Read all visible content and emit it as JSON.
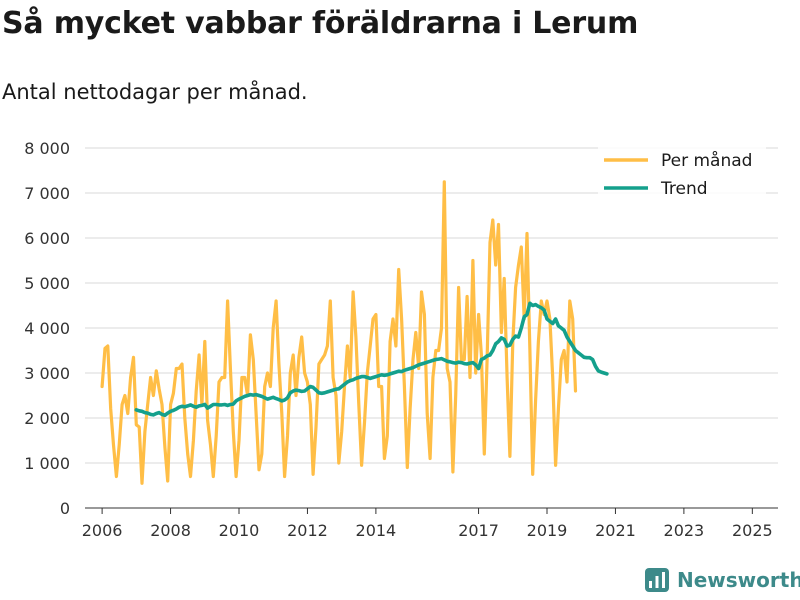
{
  "title": "Så mycket vabbar föräldrarna i Lerum",
  "subtitle": "Antal nettodagar per månad.",
  "brand": {
    "name": "Newsworthy",
    "icon": "newsworthy-logo-icon",
    "color": "#3d8a8a"
  },
  "colors": {
    "monthly": "#ffbe46",
    "trend": "#14a08c",
    "grid": "#d9d9d9",
    "axis": "#333333"
  },
  "chart_data": {
    "type": "line",
    "title": "Så mycket vabbar föräldrarna i Lerum",
    "subtitle": "Antal nettodagar per månad.",
    "xlabel": "",
    "ylabel": "",
    "ylim": [
      0,
      8000
    ],
    "xlim": [
      2005.5,
      2025.75
    ],
    "grid": true,
    "legend_position": "top-right",
    "y_ticks": [
      {
        "value": 0,
        "label": "0"
      },
      {
        "value": 1000,
        "label": "1 000"
      },
      {
        "value": 2000,
        "label": "2 000"
      },
      {
        "value": 3000,
        "label": "3 000"
      },
      {
        "value": 4000,
        "label": "4 000"
      },
      {
        "value": 5000,
        "label": "5 000"
      },
      {
        "value": 6000,
        "label": "6 000"
      },
      {
        "value": 7000,
        "label": "7 000"
      },
      {
        "value": 8000,
        "label": "8 000"
      }
    ],
    "x_ticks": [
      {
        "value": 2006,
        "label": "2006"
      },
      {
        "value": 2008,
        "label": "2008"
      },
      {
        "value": 2010,
        "label": "2010"
      },
      {
        "value": 2012,
        "label": "2012"
      },
      {
        "value": 2014,
        "label": "2014"
      },
      {
        "value": 2017,
        "label": "2017"
      },
      {
        "value": 2019,
        "label": "2019"
      },
      {
        "value": 2021,
        "label": "2021"
      },
      {
        "value": 2023,
        "label": "2023"
      },
      {
        "value": 2025,
        "label": "2025"
      }
    ],
    "start_year": 2006,
    "series": [
      {
        "name": "Per månad",
        "color": "#ffbe46",
        "values": [
          2700,
          3550,
          3600,
          2200,
          1400,
          700,
          1400,
          2300,
          2500,
          2100,
          2900,
          3350,
          1850,
          1800,
          550,
          1700,
          2300,
          2900,
          2500,
          3050,
          2650,
          2300,
          1350,
          600,
          2300,
          2550,
          3100,
          3100,
          3200,
          2000,
          1200,
          700,
          1500,
          2600,
          3400,
          2300,
          3700,
          1950,
          1400,
          700,
          1600,
          2800,
          2900,
          2900,
          4600,
          3100,
          1700,
          700,
          1500,
          2900,
          2900,
          2500,
          3850,
          3300,
          2100,
          850,
          1200,
          2700,
          3000,
          2700,
          4000,
          4600,
          3200,
          2100,
          700,
          1600,
          3000,
          3400,
          2500,
          3350,
          3800,
          3000,
          2800,
          2300,
          750,
          1800,
          3200,
          3300,
          3400,
          3600,
          4600,
          2900,
          2500,
          1000,
          1700,
          2700,
          3600,
          2900,
          4800,
          3800,
          2300,
          950,
          1900,
          3000,
          3600,
          4200,
          4300,
          2700,
          2700,
          1100,
          1600,
          3700,
          4200,
          3600,
          5300,
          4200,
          2700,
          900,
          2200,
          3300,
          3900,
          3100,
          4800,
          4300,
          2100,
          1100,
          2900,
          3500,
          3500,
          4000,
          7250,
          3100,
          2800,
          800,
          2500,
          4900,
          3300,
          3300,
          4700,
          2900,
          5500,
          3000,
          4300,
          3400,
          1200,
          3300,
          5900,
          6400,
          5400,
          6300,
          3900,
          5100,
          2900,
          1150,
          3700,
          4900,
          5400,
          5800,
          4200,
          6100,
          3500,
          750,
          2400,
          3700,
          4600,
          4300,
          4600,
          4200,
          2900,
          950,
          2200,
          3300,
          3500,
          2800,
          4600,
          4200,
          2600
        ]
      },
      {
        "name": "Trend",
        "color": "#14a08c",
        "start_index": 12,
        "values": [
          2180,
          2160,
          2150,
          2120,
          2110,
          2080,
          2070,
          2100,
          2120,
          2080,
          2060,
          2110,
          2150,
          2170,
          2200,
          2240,
          2260,
          2250,
          2270,
          2290,
          2260,
          2240,
          2270,
          2280,
          2300,
          2220,
          2260,
          2300,
          2300,
          2290,
          2290,
          2300,
          2280,
          2300,
          2310,
          2380,
          2420,
          2450,
          2480,
          2500,
          2520,
          2510,
          2520,
          2500,
          2480,
          2450,
          2420,
          2440,
          2460,
          2430,
          2410,
          2380,
          2400,
          2450,
          2560,
          2600,
          2620,
          2610,
          2590,
          2600,
          2650,
          2700,
          2680,
          2620,
          2560,
          2550,
          2560,
          2580,
          2600,
          2620,
          2640,
          2650,
          2700,
          2750,
          2800,
          2830,
          2850,
          2880,
          2900,
          2920,
          2920,
          2900,
          2880,
          2900,
          2920,
          2940,
          2960,
          2950,
          2960,
          2980,
          3000,
          3020,
          3040,
          3030,
          3060,
          3080,
          3100,
          3120,
          3150,
          3180,
          3200,
          3220,
          3240,
          3260,
          3280,
          3300,
          3310,
          3320,
          3290,
          3260,
          3250,
          3230,
          3220,
          3240,
          3230,
          3210,
          3200,
          3220,
          3230,
          3180,
          3100,
          3300,
          3330,
          3380,
          3400,
          3500,
          3650,
          3700,
          3780,
          3750,
          3600,
          3620,
          3750,
          3820,
          3800,
          4000,
          4250,
          4300,
          4550,
          4500,
          4520,
          4480,
          4450,
          4400,
          4200,
          4150,
          4100,
          4200,
          4050,
          4000,
          3950,
          3800,
          3700,
          3600,
          3500,
          3450,
          3400,
          3350,
          3340,
          3340,
          3300,
          3150,
          3050,
          3020,
          3000,
          2980
        ]
      }
    ]
  }
}
